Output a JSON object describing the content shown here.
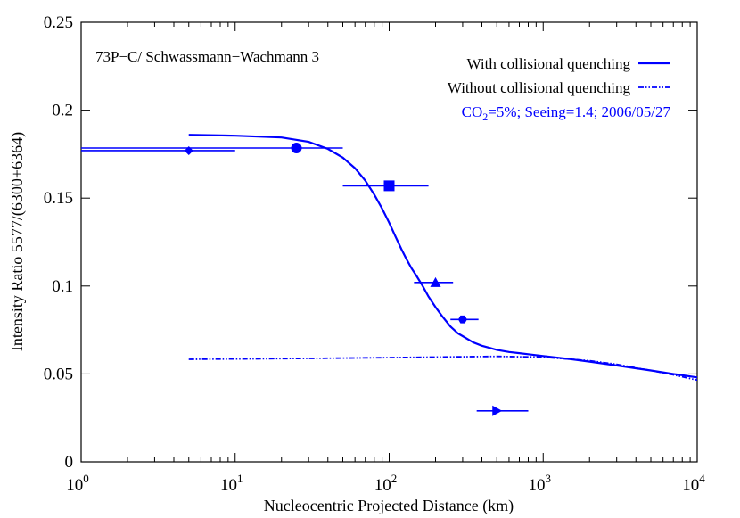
{
  "chart_data": {
    "type": "scatter",
    "title": "73P−C/ Schwassmann−Wachmann 3",
    "xlabel": "Nucleocentric Projected Distance (km)",
    "ylabel": "Intensity Ratio 5577/(6300+6364)",
    "xscale": "log",
    "xlim": [
      1,
      10000
    ],
    "ylim": [
      0,
      0.25
    ],
    "x_ticks": [
      {
        "value": 1,
        "base": "10",
        "exp": "0"
      },
      {
        "value": 10,
        "base": "10",
        "exp": "1"
      },
      {
        "value": 100,
        "base": "10",
        "exp": "2"
      },
      {
        "value": 1000,
        "base": "10",
        "exp": "3"
      },
      {
        "value": 10000,
        "base": "10",
        "exp": "4"
      }
    ],
    "y_ticks": [
      {
        "value": 0,
        "label": "0"
      },
      {
        "value": 0.05,
        "label": "0.05"
      },
      {
        "value": 0.1,
        "label": "0.1"
      },
      {
        "value": 0.15,
        "label": "0.15"
      },
      {
        "value": 0.2,
        "label": "0.2"
      },
      {
        "value": 0.25,
        "label": "0.25"
      }
    ],
    "grid": false,
    "legend_position": "top-right",
    "color": "#0000ff",
    "series": [
      {
        "name": "With collisional quenching",
        "style": "solid",
        "x": [
          5,
          10,
          20,
          30,
          40,
          50,
          60,
          70,
          80,
          90,
          100,
          110,
          120,
          130,
          140,
          150,
          165,
          180,
          200,
          220,
          250,
          280,
          300,
          350,
          400,
          450,
          500,
          600,
          700,
          800,
          1000,
          1500,
          2000,
          3000,
          5000,
          7000,
          10000
        ],
        "y": [
          0.186,
          0.1855,
          0.1845,
          0.182,
          0.178,
          0.173,
          0.167,
          0.16,
          0.152,
          0.144,
          0.136,
          0.128,
          0.121,
          0.115,
          0.11,
          0.106,
          0.1,
          0.094,
          0.088,
          0.083,
          0.077,
          0.073,
          0.0715,
          0.068,
          0.066,
          0.0648,
          0.0637,
          0.0625,
          0.0618,
          0.0612,
          0.0602,
          0.0584,
          0.057,
          0.0548,
          0.052,
          0.05,
          0.048
        ]
      },
      {
        "name": "Without collisional quenching",
        "style": "dash-dot",
        "x": [
          5,
          10,
          30,
          100,
          300,
          500,
          1000,
          2000,
          3000,
          5000,
          7000,
          10000
        ],
        "y": [
          0.0583,
          0.0585,
          0.0588,
          0.0593,
          0.0598,
          0.06,
          0.0596,
          0.0575,
          0.0555,
          0.052,
          0.0495,
          0.0465
        ]
      }
    ],
    "points": [
      {
        "marker": "diamond",
        "x": 5,
        "y": 0.177,
        "xerr": [
          1,
          10
        ]
      },
      {
        "marker": "circle",
        "x": 25,
        "y": 0.1785,
        "xerr": [
          1,
          50
        ]
      },
      {
        "marker": "square",
        "x": 100,
        "y": 0.157,
        "xerr": [
          50,
          180
        ]
      },
      {
        "marker": "triangle-up",
        "x": 200,
        "y": 0.102,
        "xerr": [
          145,
          260
        ]
      },
      {
        "marker": "hexagon",
        "x": 300,
        "y": 0.081,
        "xerr": [
          250,
          380
        ]
      },
      {
        "marker": "triangle-right",
        "x": 500,
        "y": 0.029,
        "xerr": [
          370,
          800
        ]
      }
    ],
    "legend": {
      "entries": [
        "With collisional quenching",
        "Without collisional quenching"
      ],
      "note_prefix": "CO",
      "note_sub": "2",
      "note_suffix": "=5%; Seeing=1.4; 2006/05/27"
    }
  }
}
